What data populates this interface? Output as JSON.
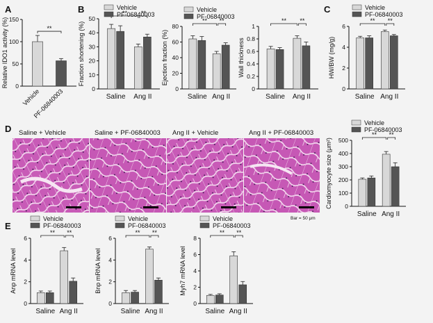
{
  "colors": {
    "vehicle": "#d8d8d8",
    "pf": "#555555",
    "axis": "#111111"
  },
  "legend": {
    "vehicle": "Vehicle",
    "pf": "PF-06840003"
  },
  "panel_letters": [
    "A",
    "B",
    "C",
    "D",
    "E"
  ],
  "histology": {
    "titles": [
      "Saline + Vehicle",
      "Saline + PF-06840003",
      "Ang II + Vehicle",
      "Ang II + PF-06840003"
    ],
    "scale_note": "Bar = 50 μm"
  },
  "chart_data": [
    {
      "id": "A",
      "type": "bar",
      "categories": [
        "Vehicle",
        "PF-06840003"
      ],
      "values": [
        100,
        57
      ],
      "errors": [
        14,
        5
      ],
      "ylabel": "Relative IDO1 activity (%)",
      "ylim": [
        0,
        150
      ],
      "yticks": [
        0,
        50,
        100,
        150
      ],
      "sig": [
        {
          "from": 0,
          "to": 1,
          "label": "**"
        }
      ]
    },
    {
      "id": "B1",
      "type": "bar",
      "categories": [
        "Saline",
        "Ang II"
      ],
      "series": [
        {
          "name": "Vehicle",
          "values": [
            43,
            30
          ],
          "errors": [
            3,
            2
          ]
        },
        {
          "name": "PF-06840003",
          "values": [
            41,
            37
          ],
          "errors": [
            4,
            2
          ]
        }
      ],
      "ylabel": "Fraction shortening (%)",
      "ylim": [
        0,
        50
      ],
      "yticks": [
        0,
        10,
        20,
        30,
        40,
        50
      ],
      "sig": [
        {
          "label": "**"
        },
        {
          "label": "**"
        }
      ]
    },
    {
      "id": "B2",
      "type": "bar",
      "categories": [
        "Saline",
        "Ang II"
      ],
      "series": [
        {
          "name": "Vehicle",
          "values": [
            64,
            45
          ],
          "errors": [
            4,
            3
          ]
        },
        {
          "name": "PF-06840003",
          "values": [
            62,
            56
          ],
          "errors": [
            5,
            3
          ]
        }
      ],
      "ylabel": "Ejection fraction (%)",
      "ylim": [
        0,
        80
      ],
      "yticks": [
        0,
        20,
        40,
        60,
        80
      ],
      "sig": [
        {
          "label": "**"
        },
        {
          "label": "**"
        }
      ]
    },
    {
      "id": "B3",
      "type": "bar",
      "categories": [
        "Saline",
        "Ang II"
      ],
      "series": [
        {
          "name": "Vehicle",
          "values": [
            0.64,
            0.81
          ],
          "errors": [
            0.04,
            0.04
          ]
        },
        {
          "name": "PF-06840003",
          "values": [
            0.63,
            0.69
          ],
          "errors": [
            0.03,
            0.06
          ]
        }
      ],
      "ylabel": "Wall thickness",
      "ylim": [
        0,
        1.0
      ],
      "yticks": [
        0,
        0.2,
        0.4,
        0.6,
        0.8,
        1.0
      ],
      "sig": [
        {
          "label": "**"
        },
        {
          "label": "**"
        }
      ]
    },
    {
      "id": "C",
      "type": "bar",
      "categories": [
        "Saline",
        "Ang II"
      ],
      "series": [
        {
          "name": "Vehicle",
          "values": [
            4.9,
            5.5
          ],
          "errors": [
            0.15,
            0.15
          ]
        },
        {
          "name": "PF-06840003",
          "values": [
            4.9,
            5.1
          ],
          "errors": [
            0.2,
            0.12
          ]
        }
      ],
      "ylabel": "HW/BW (mg/g)",
      "ylim": [
        0,
        6
      ],
      "yticks": [
        0,
        2,
        4,
        6
      ],
      "sig": [
        {
          "label": "**"
        },
        {
          "label": "**"
        }
      ]
    },
    {
      "id": "D",
      "type": "bar",
      "categories": [
        "Saline",
        "Ang II"
      ],
      "series": [
        {
          "name": "Vehicle",
          "values": [
            205,
            395
          ],
          "errors": [
            10,
            20
          ]
        },
        {
          "name": "PF-06840003",
          "values": [
            215,
            300
          ],
          "errors": [
            15,
            30
          ]
        }
      ],
      "ylabel": "Cardiomyocyte size (μm²)",
      "ylim": [
        0,
        500
      ],
      "yticks": [
        0,
        100,
        200,
        300,
        400,
        500
      ],
      "sig": [
        {
          "label": "**"
        },
        {
          "label": "**"
        }
      ]
    },
    {
      "id": "E1",
      "type": "bar",
      "categories": [
        "Saline",
        "Ang II"
      ],
      "series": [
        {
          "name": "Vehicle",
          "values": [
            1.0,
            4.85
          ],
          "errors": [
            0.15,
            0.3
          ]
        },
        {
          "name": "PF-06840003",
          "values": [
            1.0,
            2.05
          ],
          "errors": [
            0.15,
            0.3
          ]
        }
      ],
      "ylabel": "Anp mRNA level",
      "ylim": [
        0,
        6
      ],
      "yticks": [
        0,
        2,
        4,
        6
      ],
      "sig": [
        {
          "label": "**"
        },
        {
          "label": "**"
        }
      ]
    },
    {
      "id": "E2",
      "type": "bar",
      "categories": [
        "Saline",
        "Ang II"
      ],
      "series": [
        {
          "name": "Vehicle",
          "values": [
            1.0,
            5.0
          ],
          "errors": [
            0.2,
            0.2
          ]
        },
        {
          "name": "PF-06840003",
          "values": [
            1.05,
            2.15
          ],
          "errors": [
            0.15,
            0.2
          ]
        }
      ],
      "ylabel": "Bnp mRNA level",
      "ylim": [
        0,
        6
      ],
      "yticks": [
        0,
        2,
        4,
        6
      ],
      "sig": [
        {
          "label": "**"
        },
        {
          "label": "**"
        }
      ]
    },
    {
      "id": "E3",
      "type": "bar",
      "categories": [
        "Saline",
        "Ang II"
      ],
      "series": [
        {
          "name": "Vehicle",
          "values": [
            1.0,
            5.85
          ],
          "errors": [
            0.12,
            0.5
          ]
        },
        {
          "name": "PF-06840003",
          "values": [
            1.05,
            2.3
          ],
          "errors": [
            0.15,
            0.4
          ]
        }
      ],
      "ylabel": "Myh7 mRNA level",
      "ylim": [
        0,
        8
      ],
      "yticks": [
        0,
        2,
        4,
        6,
        8
      ],
      "sig": [
        {
          "label": "**"
        },
        {
          "label": "**"
        }
      ]
    }
  ]
}
